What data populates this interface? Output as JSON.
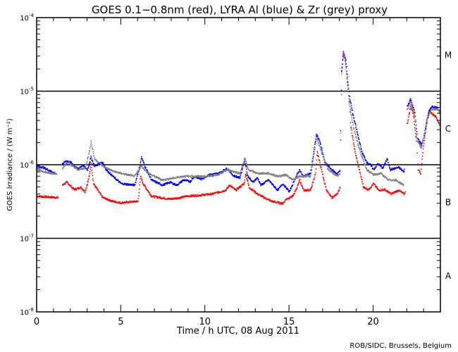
{
  "chart_data": {
    "type": "scatter",
    "title": "GOES 0.1−0.8nm (red), LYRA Al (blue) & Zr (grey) proxy",
    "xlabel": "Time / h UTC, 08 Aug 2011",
    "ylabel": "GOES Irradiance / (W m⁻²)",
    "credit": "ROB/SIDC, Brussels, Belgium",
    "xlim": [
      0,
      24
    ],
    "ylim_log10": [
      -8,
      -4
    ],
    "y_scale": "log",
    "x_ticks": [
      {
        "value": 0,
        "label": "0"
      },
      {
        "value": 5,
        "label": "5"
      },
      {
        "value": 10,
        "label": "10"
      },
      {
        "value": 15,
        "label": "15"
      },
      {
        "value": 20,
        "label": "20"
      }
    ],
    "y_ticks": [
      {
        "exp": -4,
        "base": "10",
        "sup": "-4"
      },
      {
        "exp": -5,
        "base": "10",
        "sup": "-5"
      },
      {
        "exp": -6,
        "base": "10",
        "sup": "-6"
      },
      {
        "exp": -7,
        "base": "10",
        "sup": "-7"
      },
      {
        "exp": -8,
        "base": "10",
        "sup": "-8"
      }
    ],
    "flare_classes": [
      {
        "label": "M",
        "exp": -4.5
      },
      {
        "label": "C",
        "exp": -5.5
      },
      {
        "label": "B",
        "exp": -6.5
      },
      {
        "label": "A",
        "exp": -7.5
      }
    ],
    "reference_lines_log10": [
      -5,
      -6,
      -7
    ],
    "series": [
      {
        "name": "GOES 0.1-0.8nm",
        "color": "#ff0000",
        "points_log10": [
          [
            0,
            -6.42
          ],
          [
            0.6,
            -6.43
          ],
          [
            1.26,
            -6.44
          ],
          null,
          [
            1.5,
            -6.27
          ],
          [
            1.76,
            -6.23
          ],
          [
            2.2,
            -6.33
          ],
          [
            2.6,
            -6.3
          ],
          [
            2.85,
            -6.36
          ],
          [
            3.1,
            -6.15
          ],
          [
            3.2,
            -5.98
          ],
          [
            3.35,
            -6.25
          ],
          [
            3.9,
            -6.44
          ],
          [
            4.5,
            -6.49
          ],
          [
            4.95,
            -6.51
          ],
          [
            6.0,
            -6.49
          ],
          [
            6.15,
            -6.15
          ],
          [
            6.3,
            -6.25
          ],
          [
            6.8,
            -6.42
          ],
          [
            7.9,
            -6.46
          ],
          [
            8.5,
            -6.44
          ],
          [
            8.9,
            -6.42
          ],
          [
            9.55,
            -6.41
          ],
          [
            10.4,
            -6.39
          ],
          [
            11.2,
            -6.34
          ],
          [
            11.45,
            -6.27
          ],
          [
            11.8,
            -6.34
          ],
          [
            12.3,
            -6.25
          ],
          [
            12.4,
            -6.11
          ],
          [
            12.6,
            -6.3
          ],
          [
            13.1,
            -6.39
          ],
          [
            13.5,
            -6.44
          ],
          [
            13.95,
            -6.49
          ],
          [
            14.6,
            -6.52
          ],
          [
            14.8,
            -6.46
          ],
          [
            15.2,
            -6.42
          ],
          [
            15.4,
            -6.33
          ],
          [
            15.6,
            -6.2
          ],
          [
            15.85,
            -6.34
          ],
          [
            16.25,
            -6.34
          ],
          [
            16.55,
            -6.11
          ],
          [
            16.65,
            -5.82
          ],
          [
            16.9,
            -6.06
          ],
          [
            17.2,
            -6.34
          ],
          [
            17.5,
            -6.44
          ],
          [
            17.85,
            -6.39
          ],
          [
            18.0,
            -6.3
          ],
          [
            18.1,
            -4.72
          ],
          [
            18.2,
            -4.46
          ],
          [
            18.3,
            -4.53
          ],
          [
            18.5,
            -5.0
          ],
          [
            18.65,
            -5.48
          ],
          [
            18.9,
            -5.82
          ],
          [
            19.2,
            -6.11
          ],
          [
            19.4,
            -6.3
          ],
          [
            19.7,
            -6.33
          ],
          [
            20.0,
            -6.25
          ],
          [
            20.3,
            -6.34
          ],
          [
            20.65,
            -6.33
          ],
          [
            20.85,
            -6.36
          ],
          [
            21.05,
            -6.39
          ],
          [
            21.3,
            -6.36
          ],
          [
            21.5,
            -6.34
          ],
          [
            21.8,
            -6.39
          ],
          [
            21.9,
            -6.36
          ],
          null,
          [
            22.0,
            -5.44
          ],
          [
            22.2,
            -5.2
          ],
          [
            22.35,
            -5.29
          ],
          [
            22.55,
            -5.67
          ],
          [
            22.65,
            -6.06
          ],
          [
            22.8,
            -6.11
          ],
          [
            22.95,
            -5.77
          ],
          [
            23.15,
            -5.39
          ],
          [
            23.35,
            -5.27
          ],
          [
            23.7,
            -5.34
          ],
          [
            23.95,
            -5.46
          ]
        ]
      },
      {
        "name": "LYRA Al proxy",
        "color": "#0000ff",
        "points_log10": [
          [
            0,
            -6.01
          ],
          [
            0.35,
            -6.03
          ],
          [
            1.17,
            -6.12
          ],
          null,
          [
            1.5,
            -5.99
          ],
          [
            1.7,
            -5.94
          ],
          [
            2.0,
            -5.96
          ],
          [
            2.4,
            -6.05
          ],
          [
            2.7,
            -6.0
          ],
          [
            3.0,
            -6.06
          ],
          [
            3.2,
            -5.89
          ],
          [
            3.4,
            -6.01
          ],
          [
            3.9,
            -5.96
          ],
          [
            4.1,
            -6.06
          ],
          [
            4.5,
            -6.15
          ],
          [
            5.0,
            -6.25
          ],
          [
            5.8,
            -6.27
          ],
          [
            6.1,
            -6.01
          ],
          [
            6.2,
            -5.89
          ],
          [
            6.4,
            -6.01
          ],
          [
            6.8,
            -6.2
          ],
          [
            7.45,
            -6.27
          ],
          [
            7.9,
            -6.23
          ],
          [
            8.3,
            -6.27
          ],
          [
            8.7,
            -6.2
          ],
          [
            9.1,
            -6.22
          ],
          [
            9.35,
            -6.15
          ],
          [
            9.75,
            -6.19
          ],
          [
            10.2,
            -6.13
          ],
          [
            10.8,
            -6.11
          ],
          [
            11.3,
            -6.04
          ],
          [
            11.65,
            -6.14
          ],
          [
            12.05,
            -6.17
          ],
          [
            12.35,
            -5.91
          ],
          [
            12.5,
            -6.14
          ],
          [
            12.8,
            -6.23
          ],
          [
            13.1,
            -6.17
          ],
          [
            13.3,
            -6.27
          ],
          [
            13.75,
            -6.2
          ],
          [
            13.95,
            -6.25
          ],
          [
            14.3,
            -6.34
          ],
          [
            14.6,
            -6.25
          ],
          [
            15.0,
            -6.36
          ],
          [
            15.3,
            -6.2
          ],
          [
            15.6,
            -6.06
          ],
          [
            15.8,
            -6.15
          ],
          [
            16.25,
            -6.11
          ],
          [
            16.6,
            -5.58
          ],
          [
            16.8,
            -5.67
          ],
          [
            17.1,
            -5.96
          ],
          [
            17.5,
            -6.06
          ],
          [
            17.85,
            -6.12
          ],
          [
            18.0,
            -6.06
          ],
          [
            18.1,
            -4.72
          ],
          [
            18.2,
            -4.48
          ],
          [
            18.35,
            -4.57
          ],
          [
            18.55,
            -5.05
          ],
          [
            18.75,
            -5.29
          ],
          [
            19.05,
            -5.58
          ],
          [
            19.3,
            -5.82
          ],
          [
            19.6,
            -5.96
          ],
          [
            19.8,
            -5.99
          ],
          [
            20.0,
            -6.06
          ],
          [
            20.25,
            -5.98
          ],
          [
            20.55,
            -6.04
          ],
          [
            20.8,
            -5.91
          ],
          [
            21.0,
            -6.06
          ],
          [
            21.3,
            -6.04
          ],
          [
            21.5,
            -6.03
          ],
          [
            21.8,
            -6.09
          ],
          [
            21.85,
            -6.04
          ],
          null,
          [
            22.0,
            -5.2
          ],
          [
            22.2,
            -5.1
          ],
          [
            22.45,
            -5.29
          ],
          [
            22.6,
            -5.63
          ],
          [
            22.85,
            -5.72
          ],
          [
            23.05,
            -5.58
          ],
          [
            23.25,
            -5.29
          ],
          [
            23.45,
            -5.2
          ],
          [
            23.8,
            -5.22
          ],
          [
            23.95,
            -5.27
          ]
        ]
      },
      {
        "name": "LYRA Zr proxy",
        "color": "#808080",
        "points_log10": [
          [
            0,
            -6.06
          ],
          [
            0.75,
            -6.11
          ],
          [
            1.17,
            -6.11
          ],
          null,
          [
            1.5,
            -6.04
          ],
          [
            1.8,
            -5.96
          ],
          [
            2.4,
            -6.06
          ],
          [
            2.85,
            -6.04
          ],
          [
            3.1,
            -5.82
          ],
          [
            3.2,
            -5.67
          ],
          [
            3.4,
            -5.91
          ],
          [
            3.9,
            -6.01
          ],
          [
            4.5,
            -6.08
          ],
          [
            5.0,
            -6.11
          ],
          [
            5.8,
            -6.15
          ],
          [
            6.2,
            -6.01
          ],
          [
            6.6,
            -6.11
          ],
          [
            7.45,
            -6.2
          ],
          [
            8.7,
            -6.15
          ],
          [
            10.0,
            -6.15
          ],
          [
            10.8,
            -6.13
          ],
          [
            11.3,
            -6.06
          ],
          [
            12.05,
            -6.11
          ],
          [
            12.35,
            -5.91
          ],
          [
            12.55,
            -6.06
          ],
          [
            13.1,
            -6.11
          ],
          [
            13.75,
            -6.11
          ],
          [
            14.3,
            -6.15
          ],
          [
            14.8,
            -6.13
          ],
          [
            15.2,
            -6.2
          ],
          [
            15.6,
            -6.15
          ],
          [
            16.25,
            -6.15
          ],
          [
            16.6,
            -5.63
          ],
          [
            16.9,
            -5.82
          ],
          [
            17.3,
            -6.06
          ],
          [
            17.85,
            -6.15
          ],
          [
            18.0,
            -6.1
          ],
          [
            18.1,
            -4.77
          ],
          [
            18.2,
            -4.5
          ],
          [
            18.35,
            -4.62
          ],
          [
            18.55,
            -5.15
          ],
          [
            18.8,
            -5.48
          ],
          [
            19.2,
            -5.82
          ],
          [
            19.6,
            -6.06
          ],
          [
            20.0,
            -6.13
          ],
          [
            20.45,
            -6.11
          ],
          [
            20.85,
            -6.2
          ],
          [
            21.3,
            -6.2
          ],
          [
            21.8,
            -6.27
          ],
          null,
          [
            22.0,
            -5.24
          ],
          [
            22.2,
            -5.15
          ],
          [
            22.45,
            -5.34
          ],
          [
            22.6,
            -5.67
          ],
          [
            22.85,
            -5.77
          ],
          [
            23.15,
            -5.39
          ],
          [
            23.45,
            -5.24
          ],
          [
            23.8,
            -5.24
          ],
          [
            23.95,
            -5.29
          ]
        ]
      }
    ]
  }
}
